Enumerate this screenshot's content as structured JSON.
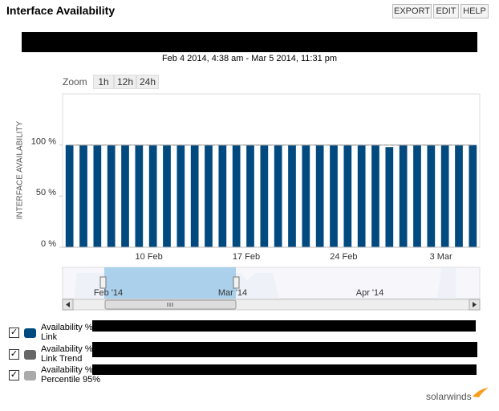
{
  "header": {
    "title": "Interface Availability",
    "buttons": [
      "EXPORT",
      "EDIT",
      "HELP"
    ]
  },
  "date_range": "Feb 4 2014, 4:38 am - Mar 5 2014, 11:31 pm",
  "zoom": {
    "label": "Zoom",
    "options": [
      "1h",
      "12h",
      "24h"
    ]
  },
  "chart_data": {
    "type": "bar",
    "ylabel": "INTERFACE AVAILABILITY",
    "categories": [
      null,
      null,
      null,
      null,
      null,
      null,
      "10 Feb",
      null,
      null,
      null,
      null,
      null,
      null,
      "17 Feb",
      null,
      null,
      null,
      null,
      null,
      null,
      "24 Feb",
      null,
      null,
      null,
      null,
      null,
      null,
      "3 Mar",
      null,
      null
    ],
    "series": [
      {
        "name": "Availability % Link",
        "type": "bar",
        "color": "#004a80",
        "values": [
          100,
          100,
          100,
          100,
          100,
          100,
          100,
          100,
          100,
          100,
          100,
          100,
          100,
          100,
          100,
          100,
          100,
          100,
          100,
          100,
          100,
          100,
          100,
          98,
          100,
          100,
          100,
          100,
          100,
          100
        ]
      },
      {
        "name": "Availability % Link Trend",
        "type": "line",
        "dashed": true,
        "color": "#666666",
        "values": [
          100,
          100,
          100,
          100,
          100,
          100,
          100,
          100,
          100,
          100,
          100,
          100,
          100,
          100,
          100,
          100,
          100,
          100,
          100,
          100,
          100,
          100,
          100,
          100,
          100,
          100,
          100,
          100,
          100,
          100
        ]
      },
      {
        "name": "Availability % Link Percentile 95%",
        "type": "line",
        "dashed": false,
        "color": "#aaaaaa",
        "values": [
          100,
          100,
          100,
          100,
          100,
          100,
          100,
          100,
          100,
          100,
          100,
          100,
          100,
          100,
          100,
          100,
          100,
          100,
          100,
          100,
          100,
          100,
          100,
          100,
          100,
          100,
          100,
          100,
          100,
          100
        ]
      }
    ],
    "ylim": [
      0,
      150
    ],
    "yticks": [
      {
        "value": 0,
        "label": "0 %"
      },
      {
        "value": 50,
        "label": "50 %"
      },
      {
        "value": 100,
        "label": "100 %"
      }
    ],
    "grid": false
  },
  "navigator": {
    "labels": [
      "Feb '14",
      "Mar '14",
      "Apr '14"
    ]
  },
  "logo": "solarwinds"
}
